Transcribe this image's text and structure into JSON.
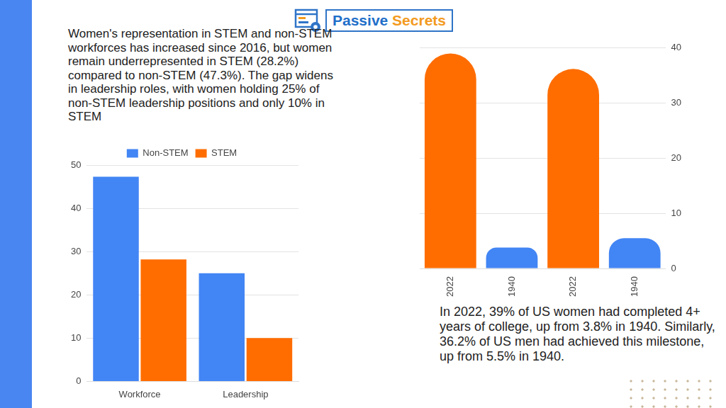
{
  "logo": "Passive Secrets",
  "chart_data": [
    {
      "type": "bar",
      "annotation": "Women's representation in STEM and non-STEM workforces has increased since 2016, but women remain underrepresented in STEM (28.2%) compared to non-STEM (47.3%). The gap widens in leadership roles, with women holding 25% of non-STEM leadership positions and only 10% in STEM",
      "categories": [
        "Workforce",
        "Leadership"
      ],
      "series": [
        {
          "name": "Non-STEM",
          "color": "#4285f4",
          "values": [
            47.3,
            25
          ]
        },
        {
          "name": "STEM",
          "color": "#ff6d01",
          "values": [
            28.2,
            10
          ]
        }
      ],
      "ylim": [
        0,
        50
      ],
      "yticks": [
        0,
        10,
        20,
        30,
        40,
        50
      ],
      "grid": true,
      "legend": "top"
    },
    {
      "type": "bar",
      "annotation": "In 2022, 39% of US women had completed 4+ years of college, up from 3.8% in 1940. Similarly, 36.2% of US men had achieved this milestone, up from 5.5% in 1940.",
      "categories": [
        "2022",
        "1940",
        "2022",
        "1940"
      ],
      "values": [
        39,
        3.8,
        36.2,
        5.5
      ],
      "colors": [
        "#ff6d01",
        "#4285f4",
        "#ff6d01",
        "#4285f4"
      ],
      "ylim": [
        0,
        40
      ],
      "yticks": [
        0,
        10,
        20,
        30,
        40
      ],
      "grid": true
    }
  ]
}
